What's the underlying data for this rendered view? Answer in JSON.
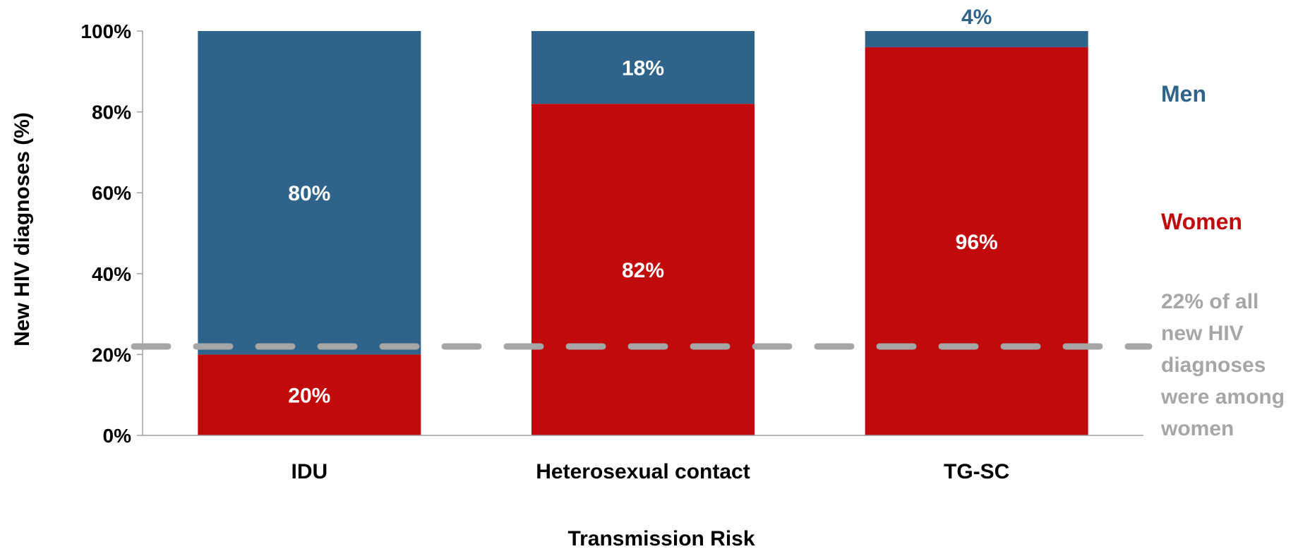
{
  "chart_data": {
    "type": "bar",
    "stacked": true,
    "categories": [
      "IDU",
      "Heterosexual contact",
      "TG-SC"
    ],
    "series": [
      {
        "name": "Women",
        "values": [
          20,
          82,
          96
        ],
        "labels": [
          "20%",
          "82%",
          "96%"
        ],
        "color": "#c00a0c"
      },
      {
        "name": "Men",
        "values": [
          80,
          18,
          4
        ],
        "labels": [
          "80%",
          "18%",
          "4%"
        ],
        "color": "#2f6389"
      }
    ],
    "ylabel": "New HIV diagnoses (%)",
    "xlabel": "Transmission Risk",
    "ylim": [
      0,
      100
    ],
    "yticks": [
      0,
      20,
      40,
      60,
      80,
      100
    ],
    "ytick_labels": [
      "0%",
      "20%",
      "40%",
      "60%",
      "80%",
      "100%"
    ],
    "grid": false,
    "legend_position": "right",
    "reference_line": {
      "value": 22,
      "style": "dashed",
      "color": "#a6a6a6",
      "note_lines": [
        "22% of all",
        "new HIV",
        "diagnoses",
        "were among",
        "women"
      ]
    },
    "label_text_color": "#ffffff",
    "small_segment_label_color": "#2f6389"
  }
}
